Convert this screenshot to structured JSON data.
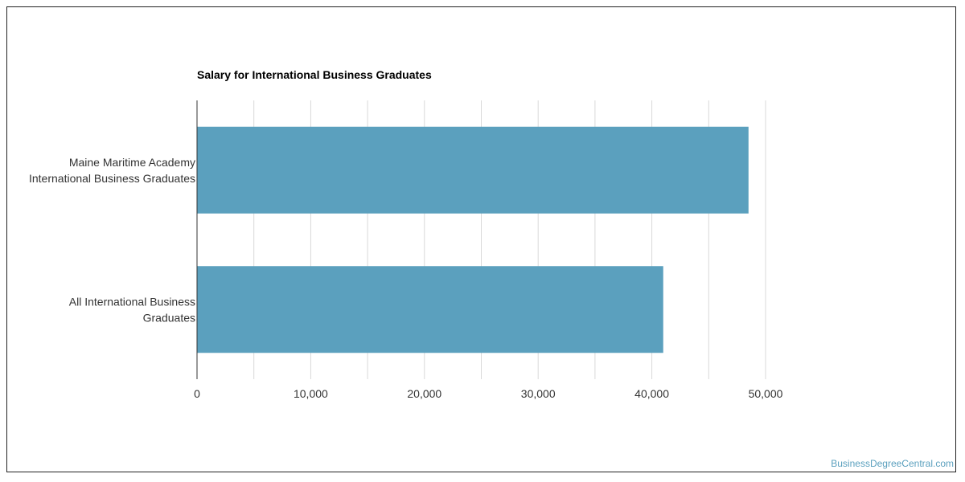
{
  "chart_data": {
    "type": "bar",
    "orientation": "horizontal",
    "title": "Salary for International Business Graduates",
    "categories": [
      [
        "Maine Maritime Academy",
        "International Business Graduates"
      ],
      [
        "All International Business",
        "Graduates"
      ]
    ],
    "values": [
      48500,
      41000
    ],
    "xlim": [
      0,
      50000
    ],
    "xticks": [
      0,
      10000,
      20000,
      30000,
      40000,
      50000
    ],
    "xtick_labels": [
      "0",
      "10,000",
      "20,000",
      "30,000",
      "40,000",
      "50,000"
    ],
    "xlabel": "",
    "ylabel": "",
    "grid": true,
    "bar_color": "#5ba0be",
    "grid_color": "#d9d9d9"
  },
  "footer": {
    "watermark": "BusinessDegreeCentral.com"
  }
}
